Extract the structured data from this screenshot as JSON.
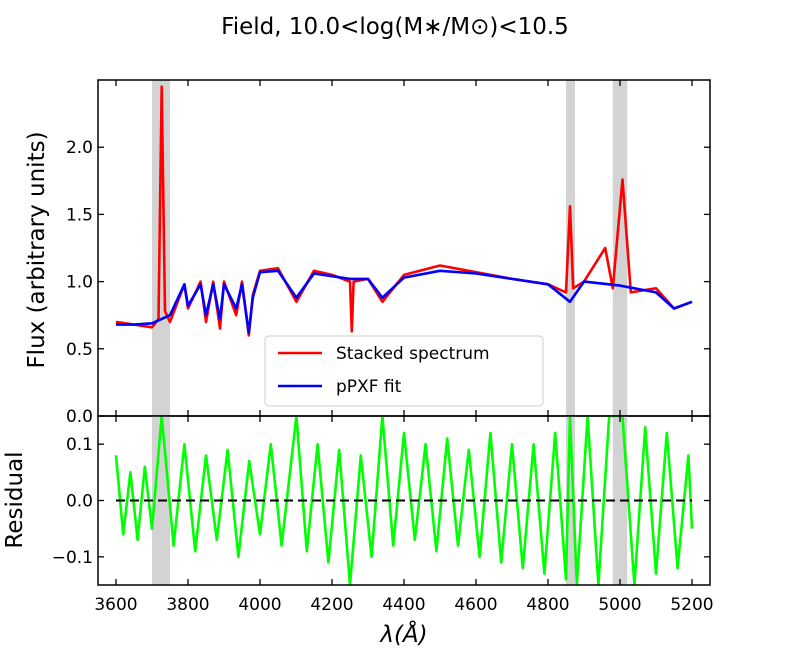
{
  "chart_data": [
    {
      "type": "line",
      "panel": "top",
      "title": "Field, 10.0<log(M∗/M⊙)<10.5",
      "xlabel": "λ(Å)",
      "ylabel": "Flux (arbitrary units)",
      "xlim": [
        3550,
        5250
      ],
      "ylim": [
        0.0,
        2.5
      ],
      "yticks": [
        0.0,
        0.5,
        1.0,
        1.5,
        2.0
      ],
      "ytick_labels": [
        "0.0",
        "0.5",
        "1.0",
        "1.5",
        "2.0"
      ],
      "masked_regions": [
        [
          3700,
          3750
        ],
        [
          4850,
          4875
        ],
        [
          4980,
          5020
        ]
      ],
      "masked_color": "#d3d3d3",
      "legend": {
        "placement": "lower-center",
        "entries": [
          "Stacked spectrum",
          "pPXF fit"
        ]
      },
      "series": [
        {
          "name": "Stacked spectrum",
          "color": "#ff0000",
          "x": [
            3600,
            3650,
            3700,
            3718,
            3727,
            3736,
            3750,
            3790,
            3800,
            3835,
            3850,
            3870,
            3889,
            3900,
            3934,
            3950,
            3969,
            3980,
            4000,
            4050,
            4101,
            4150,
            4200,
            4250,
            4255,
            4260,
            4300,
            4340,
            4400,
            4500,
            4600,
            4700,
            4800,
            4850,
            4861,
            4870,
            4900,
            4959,
            4980,
            5007,
            5030,
            5100,
            5150,
            5200
          ],
          "y": [
            0.7,
            0.68,
            0.66,
            0.72,
            2.45,
            0.78,
            0.7,
            0.98,
            0.8,
            1.0,
            0.7,
            1.0,
            0.65,
            1.0,
            0.75,
            1.0,
            0.6,
            0.9,
            1.08,
            1.1,
            0.85,
            1.08,
            1.05,
            1.0,
            0.63,
            1.0,
            1.02,
            0.85,
            1.05,
            1.12,
            1.07,
            1.02,
            0.98,
            0.92,
            1.56,
            0.95,
            1.0,
            1.25,
            0.95,
            1.76,
            0.92,
            0.95,
            0.8,
            0.85
          ]
        },
        {
          "name": "pPXF fit",
          "color": "#0000ff",
          "x": [
            3600,
            3650,
            3700,
            3750,
            3790,
            3800,
            3835,
            3850,
            3870,
            3889,
            3900,
            3934,
            3950,
            3969,
            3980,
            4000,
            4050,
            4101,
            4150,
            4200,
            4250,
            4300,
            4340,
            4400,
            4500,
            4600,
            4700,
            4800,
            4861,
            4900,
            5000,
            5100,
            5150,
            5200
          ],
          "y": [
            0.68,
            0.68,
            0.69,
            0.75,
            0.98,
            0.82,
            0.98,
            0.75,
            0.98,
            0.72,
            0.98,
            0.8,
            0.98,
            0.62,
            0.88,
            1.07,
            1.08,
            0.88,
            1.06,
            1.04,
            1.02,
            1.02,
            0.88,
            1.03,
            1.08,
            1.06,
            1.02,
            0.98,
            0.85,
            1.0,
            0.97,
            0.92,
            0.8,
            0.85
          ]
        }
      ]
    },
    {
      "type": "line",
      "panel": "bottom",
      "xlabel": "λ(Å)",
      "ylabel": "Residual",
      "xlim": [
        3550,
        5250
      ],
      "ylim": [
        -0.15,
        0.15
      ],
      "xticks": [
        3600,
        3800,
        4000,
        4200,
        4400,
        4600,
        4800,
        5000,
        5200
      ],
      "xtick_labels": [
        "3600",
        "3800",
        "4000",
        "4200",
        "4400",
        "4600",
        "4800",
        "5000",
        "5200"
      ],
      "yticks": [
        -0.1,
        0.0,
        0.1
      ],
      "ytick_labels": [
        "−0.1",
        "0.0",
        "0.1"
      ],
      "masked_regions": [
        [
          3700,
          3750
        ],
        [
          4850,
          4875
        ],
        [
          4980,
          5020
        ]
      ],
      "zero_line": {
        "value": 0.0,
        "style": "dashed",
        "color": "#000000"
      },
      "series": [
        {
          "name": "Residual",
          "color": "#00ff00",
          "x": [
            3600,
            3620,
            3640,
            3660,
            3680,
            3700,
            3727,
            3760,
            3790,
            3820,
            3850,
            3880,
            3910,
            3940,
            3970,
            4000,
            4030,
            4060,
            4101,
            4130,
            4160,
            4190,
            4220,
            4250,
            4280,
            4310,
            4340,
            4370,
            4400,
            4430,
            4460,
            4490,
            4520,
            4550,
            4580,
            4610,
            4640,
            4670,
            4700,
            4730,
            4760,
            4790,
            4820,
            4850,
            4861,
            4880,
            4910,
            4940,
            4970,
            5007,
            5040,
            5070,
            5100,
            5130,
            5160,
            5190,
            5200
          ],
          "y": [
            0.08,
            -0.06,
            0.05,
            -0.07,
            0.06,
            -0.05,
            0.15,
            -0.08,
            0.1,
            -0.09,
            0.08,
            -0.07,
            0.09,
            -0.1,
            0.07,
            -0.06,
            0.1,
            -0.08,
            0.15,
            -0.09,
            0.1,
            -0.11,
            0.09,
            -0.15,
            0.08,
            -0.1,
            0.15,
            -0.08,
            0.12,
            -0.07,
            0.1,
            -0.09,
            0.11,
            -0.08,
            0.09,
            -0.1,
            0.12,
            -0.11,
            0.1,
            -0.12,
            0.1,
            -0.13,
            0.12,
            -0.14,
            0.15,
            -0.15,
            0.15,
            -0.15,
            0.15,
            0.15,
            -0.15,
            0.13,
            -0.13,
            0.12,
            -0.12,
            0.08,
            -0.05
          ]
        }
      ]
    }
  ]
}
